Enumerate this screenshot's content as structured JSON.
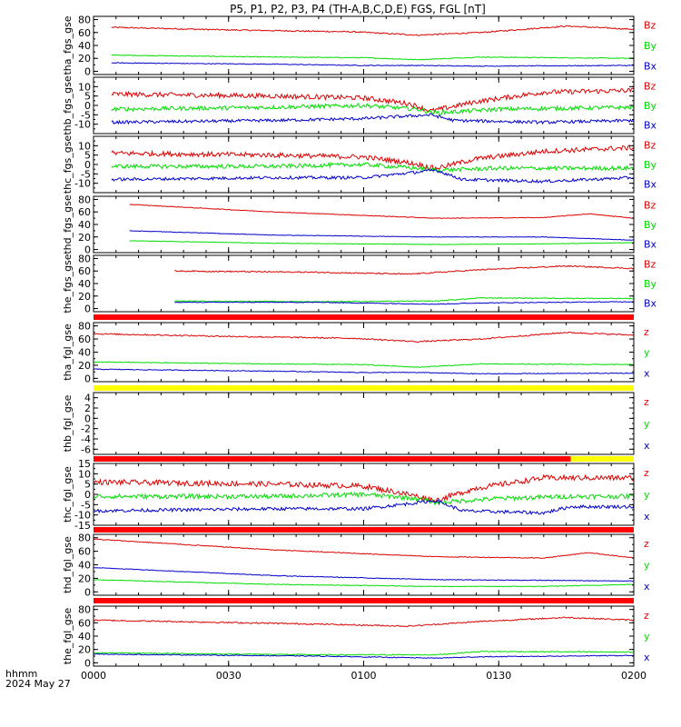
{
  "title": "P5, P1, P2, P3, P4 (TH-A,B,C,D,E) FGS, FGL [nT]",
  "footer": {
    "left_line1": "hhmm",
    "left_line2": "2024 May 27"
  },
  "x_axis": {
    "ticks": [
      "0000",
      "0030",
      "0100",
      "0130",
      "0200"
    ]
  },
  "colors": {
    "z": "#dd0000",
    "y": "#00dd00",
    "x": "#0000cc",
    "bar_red": "#ff0000",
    "bar_yellow": "#ffff00"
  },
  "chart_data": [
    {
      "type": "line",
      "ylabel": "tha_fgs_gse",
      "ylim": [
        -5,
        85
      ],
      "yticks": [
        0,
        20,
        40,
        60,
        80
      ],
      "x": [
        0,
        120
      ],
      "legend": [
        "Bz",
        "By",
        "Bx"
      ],
      "series": [
        {
          "name": "Bz",
          "values": [
            [
              4,
              68
            ],
            [
              30,
              64
            ],
            [
              58,
              61
            ],
            [
              72,
              56
            ],
            [
              86,
              60
            ],
            [
              105,
              70
            ],
            [
              120,
              65
            ]
          ],
          "noise": 1.0
        },
        {
          "name": "By",
          "values": [
            [
              4,
              25
            ],
            [
              40,
              22
            ],
            [
              60,
              21
            ],
            [
              72,
              18
            ],
            [
              86,
              22
            ],
            [
              120,
              20
            ]
          ],
          "noise": 0.6
        },
        {
          "name": "Bx",
          "values": [
            [
              4,
              13
            ],
            [
              40,
              11
            ],
            [
              60,
              9
            ],
            [
              72,
              9
            ],
            [
              86,
              8
            ],
            [
              120,
              9
            ]
          ],
          "noise": 0.6
        }
      ]
    },
    {
      "type": "line",
      "ylabel": "thb_fgs_gse",
      "ylim": [
        -15,
        15
      ],
      "yticks": [
        10,
        5,
        0,
        -5,
        -10
      ],
      "tickfmt": "ff",
      "x": [
        0,
        120
      ],
      "legend": [
        "Bz",
        "By",
        "Bx"
      ],
      "series": [
        {
          "name": "Bz",
          "values": [
            [
              4,
              6
            ],
            [
              40,
              5
            ],
            [
              60,
              4
            ],
            [
              70,
              1
            ],
            [
              75,
              -3
            ],
            [
              85,
              2
            ],
            [
              100,
              7
            ],
            [
              120,
              8
            ]
          ],
          "noise": 1.3
        },
        {
          "name": "By",
          "values": [
            [
              4,
              -2
            ],
            [
              40,
              -1
            ],
            [
              60,
              0
            ],
            [
              72,
              -2
            ],
            [
              76,
              -4
            ],
            [
              90,
              -2
            ],
            [
              120,
              -1
            ]
          ],
          "noise": 1.1
        },
        {
          "name": "Bx",
          "values": [
            [
              4,
              -9
            ],
            [
              40,
              -8
            ],
            [
              60,
              -7
            ],
            [
              75,
              -5
            ],
            [
              80,
              -8
            ],
            [
              100,
              -9
            ],
            [
              120,
              -8
            ]
          ],
          "noise": 0.8
        }
      ]
    },
    {
      "type": "line",
      "ylabel": "thc_fgs_gse",
      "ylim": [
        -15,
        15
      ],
      "yticks": [
        10,
        5,
        0,
        -5,
        -10
      ],
      "tickfmt": "ff",
      "x": [
        0,
        120
      ],
      "legend": [
        "Bz",
        "By",
        "Bx"
      ],
      "series": [
        {
          "name": "Bz",
          "values": [
            [
              4,
              6
            ],
            [
              40,
              5
            ],
            [
              60,
              4
            ],
            [
              70,
              1
            ],
            [
              76,
              -2
            ],
            [
              85,
              3
            ],
            [
              100,
              7
            ],
            [
              120,
              9
            ]
          ],
          "noise": 1.3
        },
        {
          "name": "By",
          "values": [
            [
              4,
              -1
            ],
            [
              40,
              -1
            ],
            [
              60,
              0
            ],
            [
              72,
              -2
            ],
            [
              76,
              -3
            ],
            [
              90,
              -2
            ],
            [
              120,
              -2
            ]
          ],
          "noise": 1.1
        },
        {
          "name": "Bx",
          "values": [
            [
              4,
              -8
            ],
            [
              40,
              -7
            ],
            [
              60,
              -7
            ],
            [
              76,
              -3
            ],
            [
              82,
              -8
            ],
            [
              100,
              -9
            ],
            [
              120,
              -7
            ]
          ],
          "noise": 0.8
        }
      ]
    },
    {
      "type": "line",
      "ylabel": "thd_fgs_gse",
      "ylim": [
        -5,
        85
      ],
      "yticks": [
        0,
        20,
        40,
        60,
        80
      ],
      "x": [
        0,
        120
      ],
      "legend": [
        "Bz",
        "By",
        "Bx"
      ],
      "series": [
        {
          "name": "Bz",
          "values": [
            [
              8,
              72
            ],
            [
              40,
              60
            ],
            [
              76,
              50
            ],
            [
              100,
              51
            ],
            [
              110,
              57
            ],
            [
              120,
              50
            ]
          ],
          "noise": 0.5
        },
        {
          "name": "By",
          "values": [
            [
              8,
              14
            ],
            [
              40,
              10
            ],
            [
              76,
              8
            ],
            [
              100,
              9
            ],
            [
              120,
              11
            ]
          ],
          "noise": 0.4
        },
        {
          "name": "Bx",
          "values": [
            [
              8,
              30
            ],
            [
              40,
              23
            ],
            [
              76,
              20
            ],
            [
              100,
              20
            ],
            [
              120,
              15
            ]
          ],
          "noise": 0.4
        }
      ]
    },
    {
      "type": "line",
      "ylabel": "the_fgs_gse",
      "ylim": [
        -5,
        85
      ],
      "yticks": [
        0,
        20,
        40,
        60,
        80
      ],
      "x": [
        0,
        120
      ],
      "legend": [
        "Bz",
        "By",
        "Bx"
      ],
      "series": [
        {
          "name": "Bz",
          "values": [
            [
              18,
              60
            ],
            [
              50,
              58
            ],
            [
              70,
              55
            ],
            [
              86,
              62
            ],
            [
              105,
              68
            ],
            [
              120,
              64
            ]
          ],
          "noise": 1.0
        },
        {
          "name": "By",
          "values": [
            [
              18,
              12
            ],
            [
              50,
              11
            ],
            [
              76,
              12
            ],
            [
              86,
              17
            ],
            [
              120,
              16
            ]
          ],
          "noise": 0.7
        },
        {
          "name": "Bx",
          "values": [
            [
              18,
              10
            ],
            [
              50,
              10
            ],
            [
              76,
              7
            ],
            [
              86,
              9
            ],
            [
              120,
              11
            ]
          ],
          "noise": 0.6
        }
      ]
    },
    {
      "type": "line",
      "ylabel": "tha_fgl_gse",
      "ylim": [
        -5,
        85
      ],
      "yticks": [
        0,
        20,
        40,
        60,
        80
      ],
      "x": [
        0,
        120
      ],
      "legend": [
        "z",
        "y",
        "x"
      ],
      "series": [
        {
          "name": "z",
          "values": [
            [
              0,
              68
            ],
            [
              30,
              64
            ],
            [
              58,
              61
            ],
            [
              72,
              56
            ],
            [
              86,
              60
            ],
            [
              105,
              70
            ],
            [
              120,
              66
            ]
          ],
          "noise": 1.0
        },
        {
          "name": "y",
          "values": [
            [
              0,
              25
            ],
            [
              40,
              22
            ],
            [
              60,
              21
            ],
            [
              72,
              17
            ],
            [
              86,
              22
            ],
            [
              120,
              21
            ]
          ],
          "noise": 0.6
        },
        {
          "name": "x",
          "values": [
            [
              0,
              14
            ],
            [
              40,
              11
            ],
            [
              60,
              9
            ],
            [
              72,
              9
            ],
            [
              86,
              7
            ],
            [
              120,
              8
            ]
          ],
          "noise": 0.6
        }
      ]
    },
    {
      "type": "line",
      "ylabel": "thb_fgl_gse",
      "ylim": [
        -7,
        5
      ],
      "yticks": [
        4,
        2,
        0,
        -2,
        -4,
        -6
      ],
      "x": [
        0,
        120
      ],
      "legend": [
        "z",
        "y",
        "x"
      ],
      "series": []
    },
    {
      "type": "line",
      "ylabel": "thc_fgl_gse",
      "ylim": [
        -15,
        15
      ],
      "yticks": [
        15,
        10,
        5,
        0,
        -5,
        -10,
        -15
      ],
      "tickfmt": "ff",
      "x": [
        0,
        120
      ],
      "legend": [
        "z",
        "y",
        "x"
      ],
      "series": [
        {
          "name": "z",
          "values": [
            [
              0,
              6
            ],
            [
              40,
              5
            ],
            [
              60,
              4
            ],
            [
              70,
              0
            ],
            [
              76,
              -3
            ],
            [
              85,
              3
            ],
            [
              100,
              8
            ],
            [
              106,
              8
            ],
            [
              120,
              8
            ]
          ],
          "noise": 1.3
        },
        {
          "name": "y",
          "values": [
            [
              0,
              -1
            ],
            [
              40,
              -1
            ],
            [
              60,
              0
            ],
            [
              72,
              -2
            ],
            [
              76,
              -4
            ],
            [
              90,
              -2
            ],
            [
              106,
              -1
            ],
            [
              120,
              -1
            ]
          ],
          "noise": 1.1
        },
        {
          "name": "x",
          "values": [
            [
              0,
              -8
            ],
            [
              40,
              -7
            ],
            [
              60,
              -7
            ],
            [
              76,
              -3
            ],
            [
              82,
              -8
            ],
            [
              100,
              -9
            ],
            [
              106,
              -6
            ],
            [
              120,
              -6
            ]
          ],
          "noise": 0.8
        }
      ]
    },
    {
      "type": "line",
      "ylabel": "thd_fgl_gse",
      "ylim": [
        -5,
        85
      ],
      "yticks": [
        0,
        20,
        40,
        60,
        80
      ],
      "x": [
        0,
        120
      ],
      "legend": [
        "z",
        "y",
        "x"
      ],
      "series": [
        {
          "name": "z",
          "values": [
            [
              0,
              78
            ],
            [
              40,
              62
            ],
            [
              76,
              52
            ],
            [
              100,
              50
            ],
            [
              110,
              58
            ],
            [
              120,
              50
            ]
          ],
          "noise": 0.6
        },
        {
          "name": "y",
          "values": [
            [
              0,
              18
            ],
            [
              40,
              11
            ],
            [
              76,
              8
            ],
            [
              100,
              8
            ],
            [
              120,
              11
            ]
          ],
          "noise": 0.5
        },
        {
          "name": "x",
          "values": [
            [
              0,
              36
            ],
            [
              40,
              24
            ],
            [
              76,
              18
            ],
            [
              100,
              17
            ],
            [
              120,
              16
            ]
          ],
          "noise": 0.5
        }
      ]
    },
    {
      "type": "line",
      "ylabel": "the_fgl_gse",
      "ylim": [
        -5,
        85
      ],
      "yticks": [
        0,
        20,
        40,
        60,
        80
      ],
      "x": [
        0,
        120
      ],
      "legend": [
        "z",
        "y",
        "x"
      ],
      "series": [
        {
          "name": "z",
          "values": [
            [
              0,
              64
            ],
            [
              50,
              58
            ],
            [
              70,
              55
            ],
            [
              86,
              62
            ],
            [
              105,
              68
            ],
            [
              120,
              64
            ]
          ],
          "noise": 1.0
        },
        {
          "name": "y",
          "values": [
            [
              0,
              15
            ],
            [
              50,
              12
            ],
            [
              76,
              12
            ],
            [
              86,
              17
            ],
            [
              120,
              16
            ]
          ],
          "noise": 0.8
        },
        {
          "name": "x",
          "values": [
            [
              0,
              13
            ],
            [
              50,
              10
            ],
            [
              76,
              7
            ],
            [
              86,
              9
            ],
            [
              120,
              11
            ]
          ],
          "noise": 0.6
        }
      ]
    }
  ],
  "mode_bars": [
    {
      "after_panel": 4,
      "segments": [
        {
          "from": 0,
          "to": 120,
          "color": "bar_red"
        }
      ]
    },
    {
      "after_panel": 5,
      "segments": [
        {
          "from": 0,
          "to": 120,
          "color": "bar_yellow"
        }
      ]
    },
    {
      "after_panel": 6,
      "segments": [
        {
          "from": 0,
          "to": 106,
          "color": "bar_red"
        },
        {
          "from": 106,
          "to": 120,
          "color": "bar_yellow"
        }
      ]
    },
    {
      "after_panel": 7,
      "segments": [
        {
          "from": 0,
          "to": 120,
          "color": "bar_red"
        }
      ]
    },
    {
      "after_panel": 8,
      "segments": [
        {
          "from": 0,
          "to": 120,
          "color": "bar_red"
        }
      ]
    }
  ]
}
